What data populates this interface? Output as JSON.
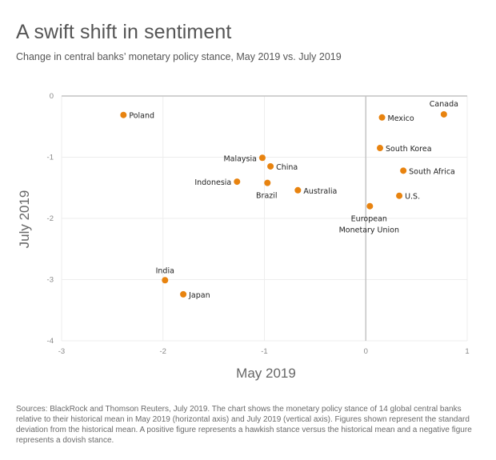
{
  "header": {
    "title": "A swift shift in sentiment",
    "subtitle": "Change in central banks’ monetary policy stance, May 2019 vs. July 2019"
  },
  "footnote": "Sources: BlackRock and Thomson Reuters, July 2019. The chart shows the monetary policy stance of 14 global central banks relative to their historical mean in May 2019 (horizontal axis) and July 2019 (vertical axis). Figures shown represent the standard deviation from the historical mean. A positive figure represents a hawkish stance versus the historical mean and a negative figure represents a dovish stance.",
  "colors": {
    "point": "#E8830F",
    "grid": "#EDEDED",
    "axis": "#C4C4C4"
  },
  "chart_data": {
    "type": "scatter",
    "title": "A swift shift in sentiment",
    "subtitle": "Change in central banks’ monetary policy stance, May 2019 vs. July 2019",
    "xlabel": "May 2019",
    "ylabel": "July 2019",
    "xlim": [
      -3,
      1
    ],
    "ylim": [
      -4,
      0
    ],
    "xticks": [
      -3,
      -2,
      -1,
      0,
      1
    ],
    "yticks": [
      0,
      -1,
      -2,
      -3,
      -4
    ],
    "xtick_labels": [
      "-3",
      "-2",
      "-1",
      "0",
      "1"
    ],
    "ytick_labels": [
      "0",
      "-1",
      "-2",
      "-3",
      "-4"
    ],
    "grid": true,
    "legend": "none",
    "points": [
      {
        "label": "Poland",
        "x": -2.39,
        "y": -0.31,
        "label_pos": "right"
      },
      {
        "label": "Canada",
        "x": 0.77,
        "y": -0.3,
        "label_pos": "top"
      },
      {
        "label": "Mexico",
        "x": 0.16,
        "y": -0.35,
        "label_pos": "right"
      },
      {
        "label": "South Korea",
        "x": 0.14,
        "y": -0.85,
        "label_pos": "right"
      },
      {
        "label": "South Africa",
        "x": 0.37,
        "y": -1.22,
        "label_pos": "right"
      },
      {
        "label": "U.S.",
        "x": 0.33,
        "y": -1.63,
        "label_pos": "right"
      },
      {
        "label": "European Monetary Union",
        "x": 0.04,
        "y": -1.8,
        "label_pos": "bottom",
        "label_lines": [
          "European",
          "Monetary Union"
        ]
      },
      {
        "label": "Malaysia",
        "x": -1.02,
        "y": -1.01,
        "label_pos": "left"
      },
      {
        "label": "China",
        "x": -0.94,
        "y": -1.15,
        "label_pos": "right"
      },
      {
        "label": "Indonesia",
        "x": -1.27,
        "y": -1.4,
        "label_pos": "left"
      },
      {
        "label": "Brazil",
        "x": -0.97,
        "y": -1.42,
        "label_pos": "bottom"
      },
      {
        "label": "Australia",
        "x": -0.67,
        "y": -1.54,
        "label_pos": "right"
      },
      {
        "label": "India",
        "x": -1.98,
        "y": -3.01,
        "label_pos": "top"
      },
      {
        "label": "Japan",
        "x": -1.8,
        "y": -3.24,
        "label_pos": "right"
      }
    ]
  }
}
